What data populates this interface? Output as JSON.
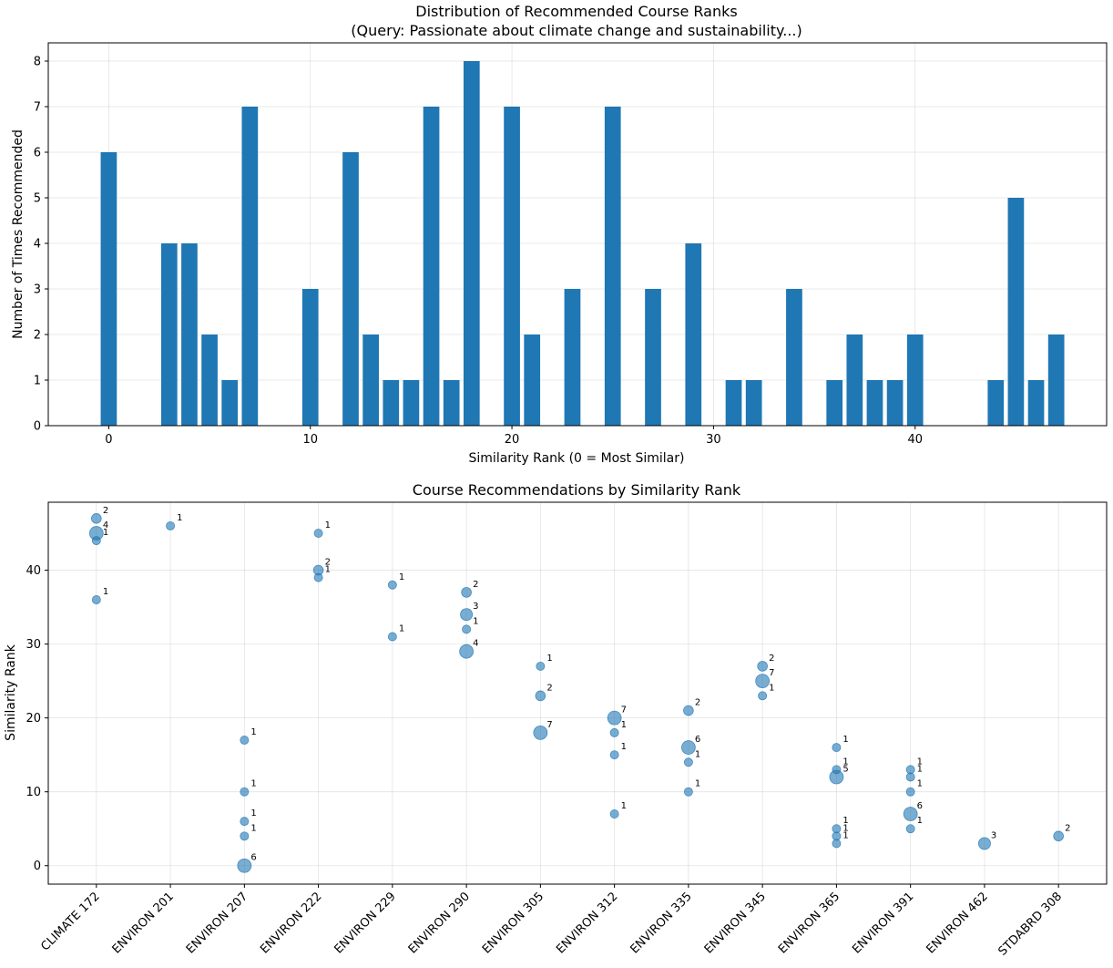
{
  "chart_data": [
    {
      "type": "bar",
      "title": "Distribution of Recommended Course Ranks",
      "subtitle": "(Query: Passionate about climate change and sustainability...)",
      "xlabel": "Similarity Rank (0 = Most Similar)",
      "ylabel": "Number of Times Recommended",
      "xlim": [
        -3,
        49.5
      ],
      "ylim": [
        0,
        8.4
      ],
      "xticks": [
        0,
        10,
        20,
        30,
        40
      ],
      "yticks": [
        0,
        1,
        2,
        3,
        4,
        5,
        6,
        7,
        8
      ],
      "grid": true,
      "color": "#1f77b4",
      "x": [
        0,
        3,
        4,
        5,
        6,
        7,
        10,
        12,
        13,
        14,
        15,
        16,
        17,
        18,
        20,
        21,
        23,
        25,
        27,
        29,
        31,
        32,
        34,
        36,
        37,
        38,
        39,
        40,
        44,
        45,
        46,
        47
      ],
      "values": [
        6,
        4,
        4,
        2,
        1,
        7,
        3,
        6,
        2,
        1,
        1,
        7,
        1,
        8,
        7,
        2,
        3,
        7,
        3,
        4,
        1,
        1,
        3,
        1,
        2,
        1,
        1,
        2,
        1,
        5,
        1,
        2
      ]
    },
    {
      "type": "scatter",
      "title": "Course Recommendations by Similarity Rank",
      "xlabel": "",
      "ylabel": "Similarity Rank",
      "ylim": [
        -2.5,
        49.2
      ],
      "yticks": [
        0,
        10,
        20,
        30,
        40
      ],
      "grid": true,
      "color": "#1f77b4",
      "categories": [
        "CLIMATE 172",
        "ENVIRON 201",
        "ENVIRON 207",
        "ENVIRON 222",
        "ENVIRON 229",
        "ENVIRON 290",
        "ENVIRON 305",
        "ENVIRON 312",
        "ENVIRON 335",
        "ENVIRON 345",
        "ENVIRON 365",
        "ENVIRON 391",
        "ENVIRON 462",
        "STDABRD 308"
      ],
      "points": [
        {
          "course": 0,
          "rank": 47,
          "count": 2
        },
        {
          "course": 0,
          "rank": 45,
          "count": 4
        },
        {
          "course": 0,
          "rank": 44,
          "count": 1
        },
        {
          "course": 0,
          "rank": 36,
          "count": 1
        },
        {
          "course": 1,
          "rank": 46,
          "count": 1
        },
        {
          "course": 2,
          "rank": 17,
          "count": 1
        },
        {
          "course": 2,
          "rank": 10,
          "count": 1
        },
        {
          "course": 2,
          "rank": 6,
          "count": 1
        },
        {
          "course": 2,
          "rank": 4,
          "count": 1
        },
        {
          "course": 2,
          "rank": 0,
          "count": 6
        },
        {
          "course": 3,
          "rank": 45,
          "count": 1
        },
        {
          "course": 3,
          "rank": 40,
          "count": 2
        },
        {
          "course": 3,
          "rank": 39,
          "count": 1
        },
        {
          "course": 4,
          "rank": 38,
          "count": 1
        },
        {
          "course": 4,
          "rank": 31,
          "count": 1
        },
        {
          "course": 5,
          "rank": 37,
          "count": 2
        },
        {
          "course": 5,
          "rank": 34,
          "count": 3
        },
        {
          "course": 5,
          "rank": 32,
          "count": 1
        },
        {
          "course": 5,
          "rank": 29,
          "count": 4
        },
        {
          "course": 6,
          "rank": 27,
          "count": 1
        },
        {
          "course": 6,
          "rank": 23,
          "count": 2
        },
        {
          "course": 6,
          "rank": 18,
          "count": 7
        },
        {
          "course": 7,
          "rank": 20,
          "count": 7
        },
        {
          "course": 7,
          "rank": 18,
          "count": 1
        },
        {
          "course": 7,
          "rank": 15,
          "count": 1
        },
        {
          "course": 7,
          "rank": 7,
          "count": 1
        },
        {
          "course": 8,
          "rank": 21,
          "count": 2
        },
        {
          "course": 8,
          "rank": 16,
          "count": 6
        },
        {
          "course": 8,
          "rank": 14,
          "count": 1
        },
        {
          "course": 8,
          "rank": 10,
          "count": 1
        },
        {
          "course": 9,
          "rank": 27,
          "count": 2
        },
        {
          "course": 9,
          "rank": 25,
          "count": 7
        },
        {
          "course": 9,
          "rank": 23,
          "count": 1
        },
        {
          "course": 10,
          "rank": 16,
          "count": 1
        },
        {
          "course": 10,
          "rank": 13,
          "count": 1
        },
        {
          "course": 10,
          "rank": 12,
          "count": 5
        },
        {
          "course": 10,
          "rank": 5,
          "count": 1
        },
        {
          "course": 10,
          "rank": 4,
          "count": 1
        },
        {
          "course": 10,
          "rank": 3,
          "count": 1
        },
        {
          "course": 11,
          "rank": 13,
          "count": 1
        },
        {
          "course": 11,
          "rank": 12,
          "count": 1
        },
        {
          "course": 11,
          "rank": 10,
          "count": 1
        },
        {
          "course": 11,
          "rank": 7,
          "count": 6
        },
        {
          "course": 11,
          "rank": 5,
          "count": 1
        },
        {
          "course": 12,
          "rank": 3,
          "count": 3
        },
        {
          "course": 13,
          "rank": 4,
          "count": 2
        }
      ]
    }
  ]
}
